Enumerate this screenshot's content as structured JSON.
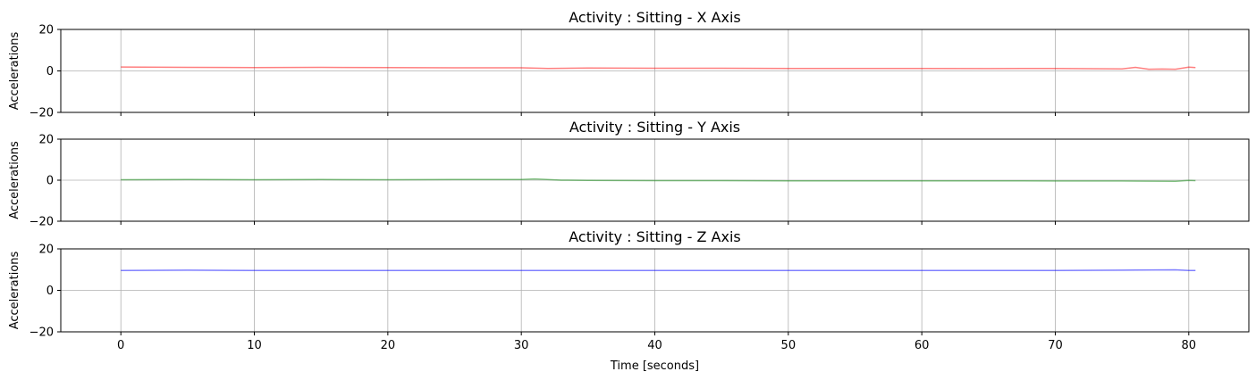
{
  "chart_data": [
    {
      "type": "line",
      "title": "Activity : Sitting - X Axis",
      "ylabel": "Accelerations",
      "xlabel": "",
      "xlim": [
        -4.5,
        84.5
      ],
      "ylim": [
        -20,
        20
      ],
      "xticks": [
        0,
        10,
        20,
        30,
        40,
        50,
        60,
        70,
        80
      ],
      "yticks": [
        -20,
        0,
        20
      ],
      "show_xtick_labels": false,
      "grid": true,
      "color": "#ff0000",
      "series": [
        {
          "x": [
            0,
            5,
            10,
            15,
            20,
            25,
            30,
            32,
            35,
            40,
            45,
            50,
            55,
            60,
            65,
            70,
            75,
            76,
            77,
            78,
            79,
            80,
            80.5
          ],
          "values": [
            1.9,
            1.7,
            1.6,
            1.7,
            1.6,
            1.5,
            1.5,
            1.2,
            1.4,
            1.3,
            1.3,
            1.2,
            1.2,
            1.2,
            1.1,
            1.2,
            1.0,
            1.7,
            0.8,
            0.9,
            0.8,
            1.8,
            1.6
          ]
        }
      ]
    },
    {
      "type": "line",
      "title": "Activity : Sitting - Y Axis",
      "ylabel": "Accelerations",
      "xlabel": "",
      "xlim": [
        -4.5,
        84.5
      ],
      "ylim": [
        -20,
        20
      ],
      "xticks": [
        0,
        10,
        20,
        30,
        40,
        50,
        60,
        70,
        80
      ],
      "yticks": [
        -20,
        0,
        20
      ],
      "show_xtick_labels": false,
      "grid": true,
      "color": "#008000",
      "series": [
        {
          "x": [
            0,
            5,
            10,
            15,
            20,
            25,
            30,
            31,
            33,
            35,
            40,
            45,
            50,
            55,
            60,
            65,
            70,
            75,
            79,
            80,
            80.5
          ],
          "values": [
            0.2,
            0.3,
            0.2,
            0.3,
            0.2,
            0.3,
            0.3,
            0.6,
            0.0,
            -0.1,
            -0.2,
            -0.2,
            -0.3,
            -0.3,
            -0.3,
            -0.3,
            -0.4,
            -0.4,
            -0.5,
            -0.1,
            -0.2
          ]
        }
      ]
    },
    {
      "type": "line",
      "title": "Activity : Sitting - Z Axis",
      "ylabel": "Accelerations",
      "xlabel": "Time [seconds]",
      "xlim": [
        -4.5,
        84.5
      ],
      "ylim": [
        -20,
        20
      ],
      "xticks": [
        0,
        10,
        20,
        30,
        40,
        50,
        60,
        70,
        80
      ],
      "yticks": [
        -20,
        0,
        20
      ],
      "show_xtick_labels": true,
      "grid": true,
      "color": "#0000ff",
      "series": [
        {
          "x": [
            0,
            5,
            10,
            20,
            30,
            40,
            50,
            60,
            70,
            75,
            79,
            80,
            80.5
          ],
          "values": [
            9.6,
            9.7,
            9.6,
            9.6,
            9.6,
            9.6,
            9.6,
            9.6,
            9.6,
            9.7,
            9.9,
            9.6,
            9.6
          ]
        }
      ]
    }
  ]
}
